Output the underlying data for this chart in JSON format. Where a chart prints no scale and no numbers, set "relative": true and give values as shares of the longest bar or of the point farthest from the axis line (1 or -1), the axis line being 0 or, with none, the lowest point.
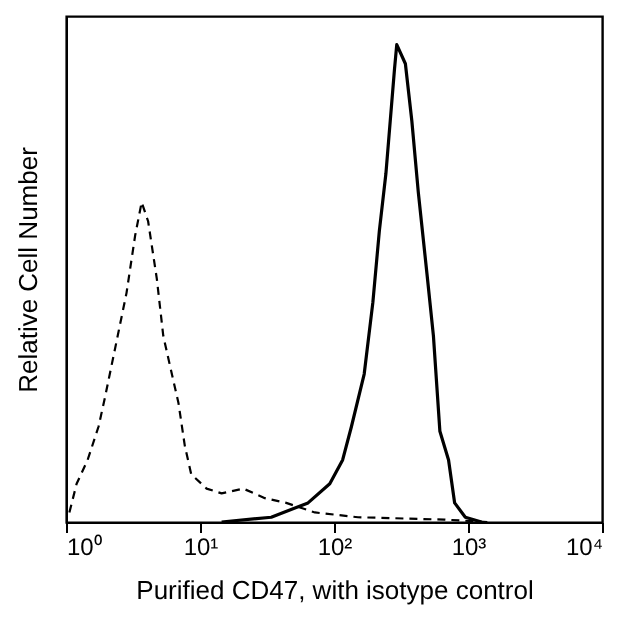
{
  "chart_data": {
    "type": "line",
    "relative": true,
    "log": "x",
    "grid": false,
    "marker": "none",
    "xlabel": "Purified CD47, with isotype control",
    "ylabel": "Relative Cell Number",
    "xlim": [
      1,
      10000
    ],
    "xticks": [
      {
        "value": 1,
        "label": "10⁰"
      },
      {
        "value": 10,
        "label": "10¹"
      },
      {
        "value": 100,
        "label": "10²"
      },
      {
        "value": 1000,
        "label": "10³"
      },
      {
        "value": 10000,
        "label": "10⁴"
      }
    ],
    "series": [
      {
        "color": "#000000",
        "line_style": "dashed",
        "x": [
          1.06,
          1.2,
          1.45,
          1.75,
          1.95,
          2.35,
          2.83,
          3.28,
          3.67,
          4.1,
          4.76,
          5.32,
          5.94,
          6.9,
          7.7,
          8.6,
          11.2,
          14.5,
          21,
          30.5,
          44,
          72,
          151,
          665,
          1400
        ],
        "values": [
          0.02,
          0.08,
          0.13,
          0.2,
          0.26,
          0.37,
          0.48,
          0.6,
          0.67,
          0.63,
          0.51,
          0.39,
          0.33,
          0.25,
          0.16,
          0.1,
          0.07,
          0.06,
          0.07,
          0.05,
          0.04,
          0.02,
          0.01,
          0.005,
          0
        ]
      },
      {
        "color": "#000000",
        "line_style": "solid",
        "x": [
          14.5,
          34,
          64,
          93,
          116,
          135,
          168,
          195,
          218,
          244,
          283,
          294,
          341,
          381,
          426,
          494,
          552,
          617,
          716,
          795,
          955,
          1260
        ],
        "values": [
          0,
          0.01,
          0.04,
          0.08,
          0.13,
          0.2,
          0.31,
          0.46,
          0.61,
          0.73,
          0.95,
          1.0,
          0.96,
          0.84,
          0.69,
          0.52,
          0.39,
          0.19,
          0.13,
          0.04,
          0.01,
          0
        ]
      }
    ]
  }
}
